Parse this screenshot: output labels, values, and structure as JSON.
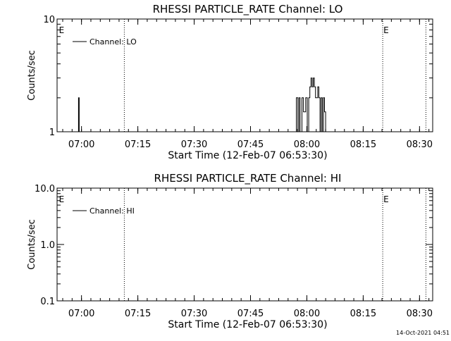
{
  "footer": {
    "timestamp": "14-Oct-2021 04:51"
  },
  "chart_data": [
    {
      "type": "line",
      "title": "RHESSI PARTICLE_RATE Channel: LO",
      "xlabel": "Start Time (12-Feb-07 06:53:30)",
      "ylabel": "Counts/sec",
      "yscale": "log",
      "ylim": [
        1,
        10
      ],
      "ytick_values": [
        1,
        10
      ],
      "ytick_labels": [
        "1",
        "10"
      ],
      "xlim_minutes": [
        0,
        100
      ],
      "xtick_values": [
        6.5,
        21.5,
        36.5,
        51.5,
        66.5,
        81.5,
        96.5
      ],
      "xtick_labels": [
        "07:00",
        "07:15",
        "07:30",
        "07:45",
        "08:00",
        "08:15",
        "08:30"
      ],
      "legend": {
        "position": "top-left",
        "label": "Channel: LO"
      },
      "markers": [
        {
          "x": 0.3,
          "label": "E"
        },
        {
          "x": 17.9,
          "label": ""
        },
        {
          "x": 86.7,
          "label": "E"
        },
        {
          "x": 98.2,
          "label": ""
        }
      ],
      "series": [
        {
          "name": "Channel: LO",
          "points": [
            [
              5.7,
              1
            ],
            [
              5.7,
              2
            ],
            [
              5.9,
              2
            ],
            [
              5.9,
              1
            ],
            [
              63.7,
              1
            ],
            [
              63.7,
              2
            ],
            [
              64.1,
              2
            ],
            [
              64.1,
              1
            ],
            [
              64.4,
              1
            ],
            [
              64.4,
              2
            ],
            [
              64.7,
              2
            ],
            [
              64.7,
              1
            ],
            [
              65.2,
              1
            ],
            [
              65.2,
              2
            ],
            [
              65.6,
              2
            ],
            [
              65.6,
              1.5
            ],
            [
              66.2,
              1.5
            ],
            [
              66.2,
              2
            ],
            [
              66.6,
              2
            ],
            [
              66.6,
              1
            ],
            [
              67.0,
              1
            ],
            [
              67.0,
              2
            ],
            [
              67.3,
              2
            ],
            [
              67.3,
              2.5
            ],
            [
              67.6,
              2.5
            ],
            [
              67.6,
              3
            ],
            [
              67.9,
              3
            ],
            [
              67.9,
              2.5
            ],
            [
              68.2,
              2.5
            ],
            [
              68.2,
              3
            ],
            [
              68.5,
              3
            ],
            [
              68.5,
              2.5
            ],
            [
              68.8,
              2.5
            ],
            [
              68.8,
              2
            ],
            [
              69.4,
              2
            ],
            [
              69.4,
              2.5
            ],
            [
              69.7,
              2.5
            ],
            [
              69.7,
              2
            ],
            [
              70.0,
              2
            ],
            [
              70.0,
              1
            ],
            [
              70.3,
              1
            ],
            [
              70.3,
              2
            ],
            [
              70.6,
              2
            ],
            [
              70.6,
              1
            ],
            [
              70.9,
              1
            ],
            [
              70.9,
              2
            ],
            [
              71.2,
              2
            ],
            [
              71.2,
              1.5
            ],
            [
              71.5,
              1.5
            ],
            [
              71.5,
              1
            ]
          ]
        }
      ]
    },
    {
      "type": "line",
      "title": "RHESSI PARTICLE_RATE Channel: HI",
      "xlabel": "Start Time (12-Feb-07 06:53:30)",
      "ylabel": "Counts/sec",
      "yscale": "log",
      "ylim": [
        0.1,
        10
      ],
      "ytick_values": [
        0.1,
        1,
        10
      ],
      "ytick_labels": [
        "0.1",
        "1.0",
        "10.0"
      ],
      "xlim_minutes": [
        0,
        100
      ],
      "xtick_values": [
        6.5,
        21.5,
        36.5,
        51.5,
        66.5,
        81.5,
        96.5
      ],
      "xtick_labels": [
        "07:00",
        "07:15",
        "07:30",
        "07:45",
        "08:00",
        "08:15",
        "08:30"
      ],
      "legend": {
        "position": "top-left",
        "label": "Channel: HI"
      },
      "markers": [
        {
          "x": 0.3,
          "label": "E"
        },
        {
          "x": 17.9,
          "label": ""
        },
        {
          "x": 86.7,
          "label": "E"
        },
        {
          "x": 98.2,
          "label": ""
        }
      ],
      "series": [
        {
          "name": "Channel: HI",
          "points": []
        }
      ]
    }
  ]
}
